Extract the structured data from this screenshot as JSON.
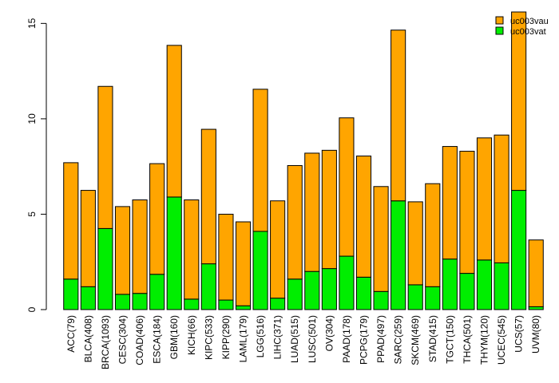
{
  "chart_data": {
    "type": "bar",
    "stacked": true,
    "title": "",
    "xlabel": "",
    "ylabel": "",
    "ylim": [
      0,
      15.6
    ],
    "yticks": [
      0,
      5,
      10,
      15
    ],
    "legend_position": "top-right",
    "categories": [
      "ACC(79)",
      "BLCA(408)",
      "BRCA(1093)",
      "CESC(304)",
      "COAD(406)",
      "ESCA(184)",
      "GBM(160)",
      "KICH(66)",
      "KIPC(533)",
      "KIPP(290)",
      "LAML(179)",
      "LGG(516)",
      "LIHC(371)",
      "LUAD(515)",
      "LUSC(501)",
      "OV(304)",
      "PAAD(178)",
      "PCPG(179)",
      "PPAD(497)",
      "SARC(259)",
      "SKCM(469)",
      "STAD(415)",
      "TGCT(150)",
      "THCA(501)",
      "THYM(120)",
      "UCEC(545)",
      "UCS(57)",
      "UVM(80)"
    ],
    "series": [
      {
        "name": "uc003vat",
        "color": "#00ee00",
        "values": [
          1.6,
          1.2,
          4.25,
          0.8,
          0.85,
          1.85,
          5.9,
          0.55,
          2.4,
          0.5,
          0.2,
          4.1,
          0.6,
          1.6,
          2.0,
          2.15,
          2.8,
          1.7,
          0.95,
          5.7,
          1.3,
          1.2,
          2.65,
          1.9,
          2.6,
          2.45,
          6.25,
          0.15
        ]
      },
      {
        "name": "uc003vau",
        "color": "#ffa500",
        "values": [
          6.1,
          5.05,
          7.45,
          4.6,
          4.9,
          5.8,
          7.95,
          5.2,
          7.05,
          4.5,
          4.4,
          7.45,
          5.1,
          5.95,
          6.2,
          6.2,
          7.25,
          6.35,
          5.5,
          8.95,
          4.35,
          5.4,
          5.9,
          6.4,
          6.4,
          6.7,
          9.35,
          3.5
        ]
      }
    ]
  }
}
